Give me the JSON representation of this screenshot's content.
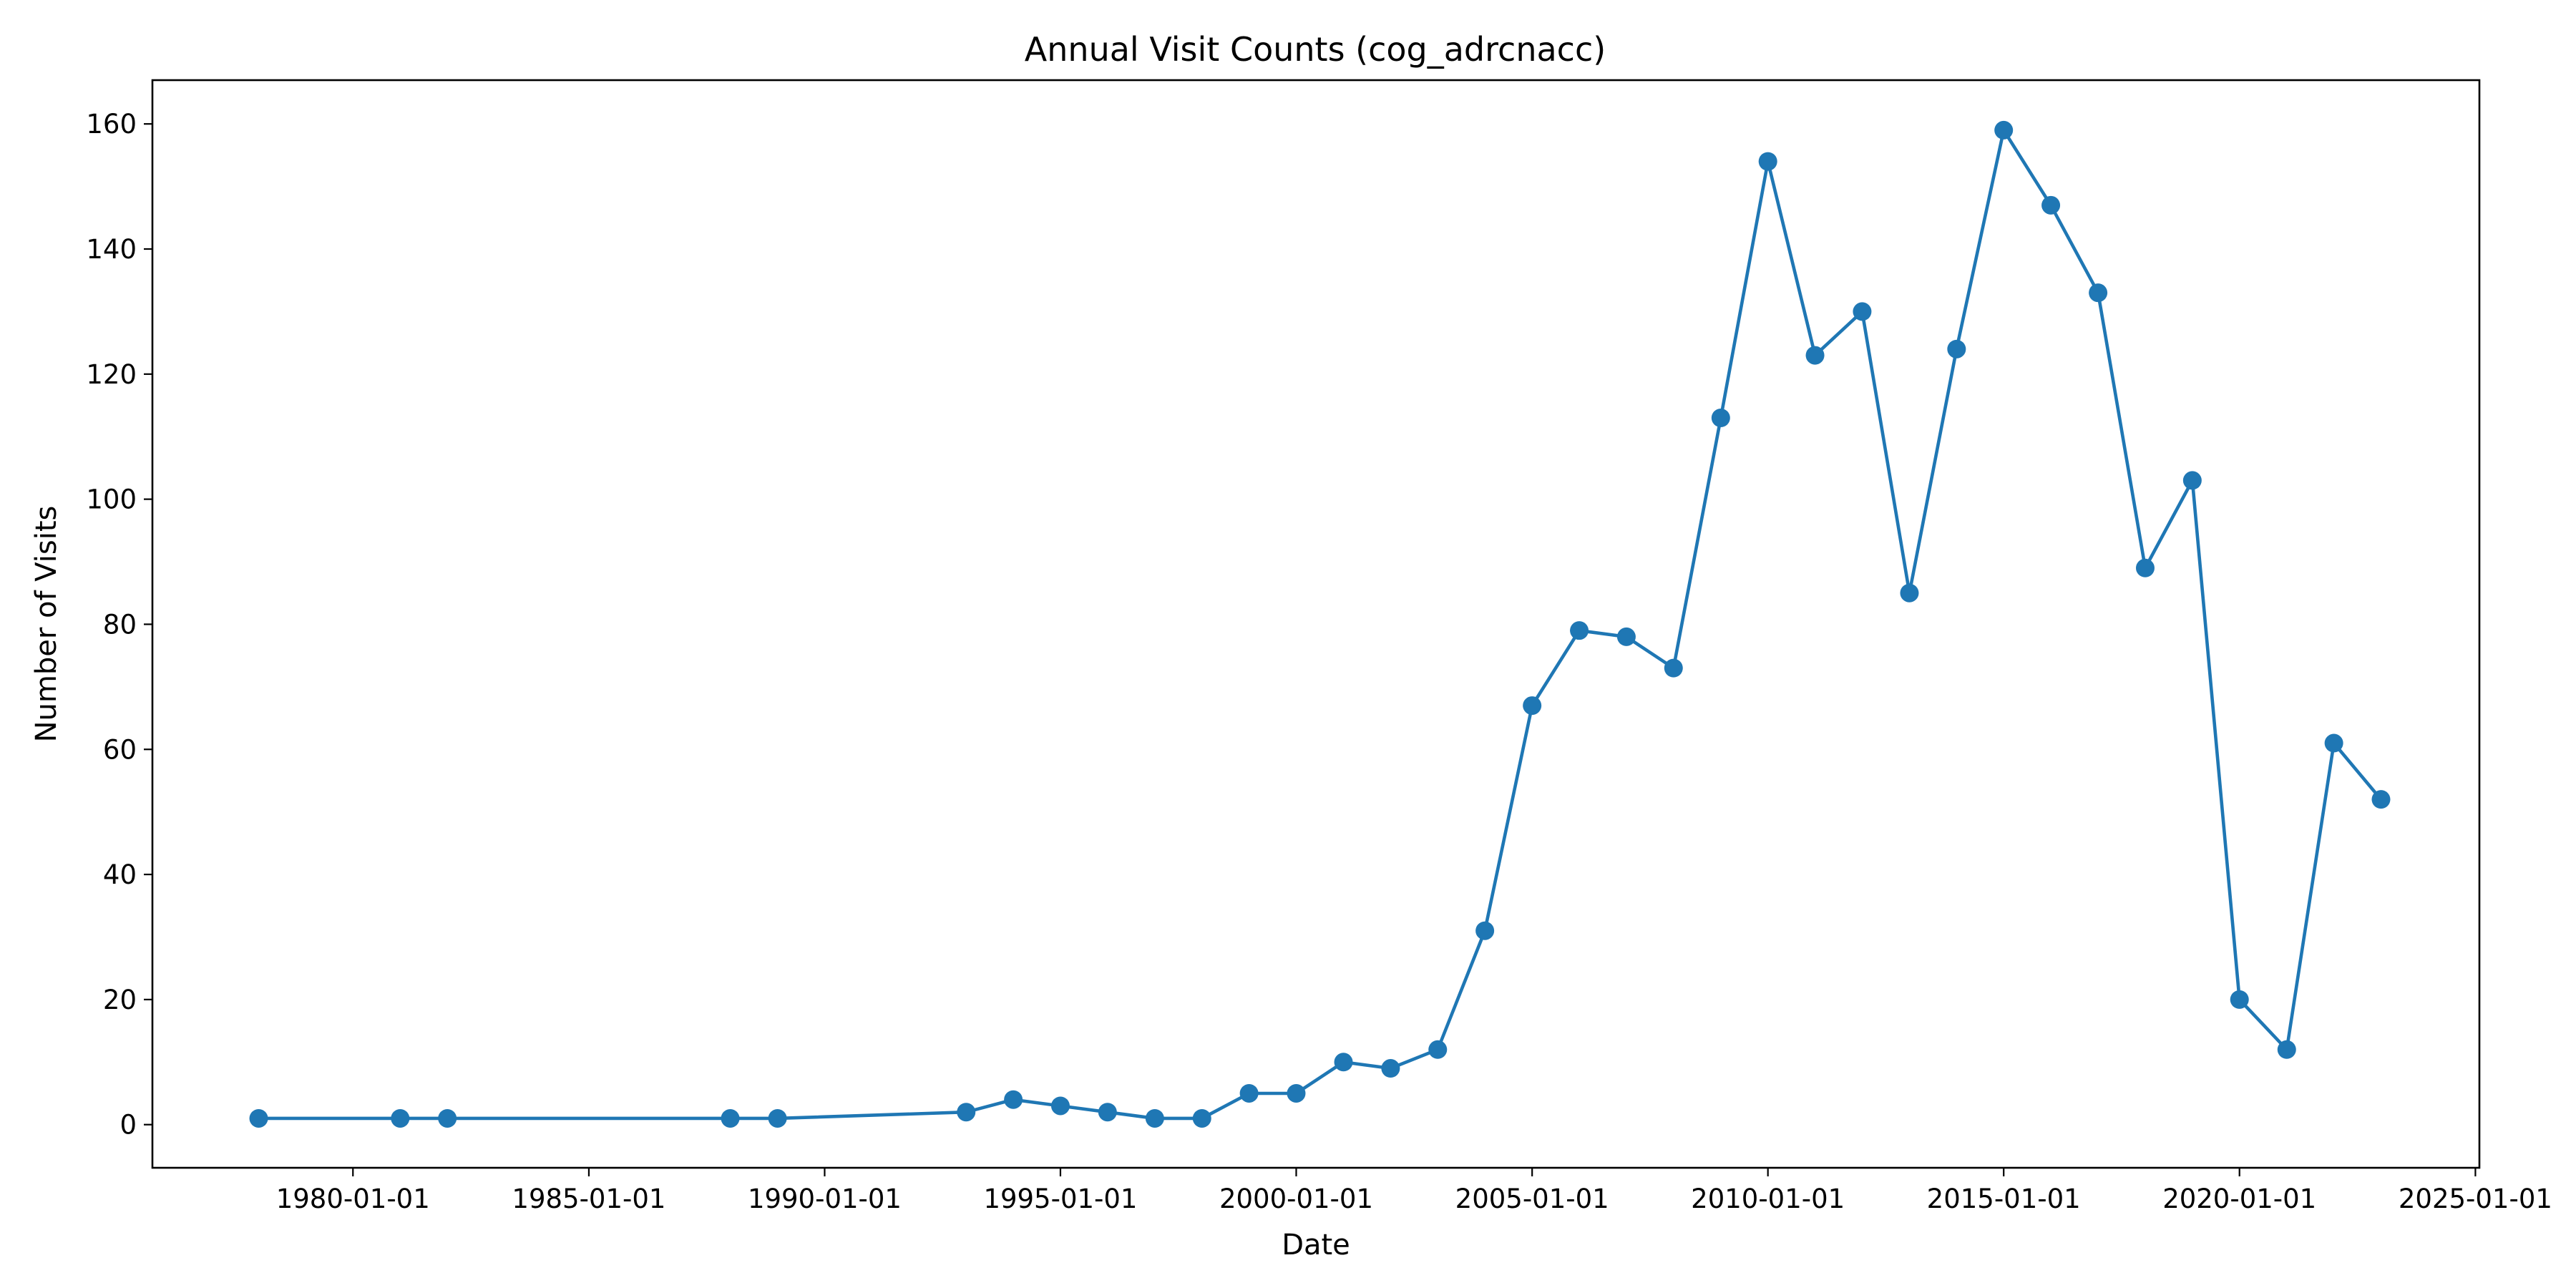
{
  "chart_data": {
    "type": "line",
    "title": "Annual Visit Counts (cog_adrcnacc)",
    "xlabel": "Date",
    "ylabel": "Number of Visits",
    "x_axis": {
      "scale": "date",
      "range": [
        "1975-10-01",
        "2025-02-01"
      ],
      "ticks": [
        "1980-01-01",
        "1985-01-01",
        "1990-01-01",
        "1995-01-01",
        "2000-01-01",
        "2005-01-01",
        "2010-01-01",
        "2015-01-01",
        "2020-01-01",
        "2025-01-01"
      ]
    },
    "y_axis": {
      "range": [
        -6.9,
        167
      ],
      "ticks": [
        0,
        20,
        40,
        60,
        80,
        100,
        120,
        140,
        160
      ]
    },
    "grid": false,
    "legend": "none",
    "colors": {
      "series": "#1f77b4"
    },
    "series": [
      {
        "x": [
          "1978-01-01",
          "1981-01-01",
          "1982-01-01",
          "1988-01-01",
          "1989-01-01",
          "1993-01-01",
          "1994-01-01",
          "1995-01-01",
          "1996-01-01",
          "1997-01-01",
          "1998-01-01",
          "1999-01-01",
          "2000-01-01",
          "2001-01-01",
          "2002-01-01",
          "2003-01-01",
          "2004-01-01",
          "2005-01-01",
          "2006-01-01",
          "2007-01-01",
          "2008-01-01",
          "2009-01-01",
          "2010-01-01",
          "2011-01-01",
          "2012-01-01",
          "2013-01-01",
          "2014-01-01",
          "2015-01-01",
          "2016-01-01",
          "2017-01-01",
          "2018-01-01",
          "2019-01-01",
          "2020-01-01",
          "2021-01-01",
          "2022-01-01",
          "2023-01-01"
        ],
        "values": [
          1,
          1,
          1,
          1,
          1,
          2,
          4,
          3,
          2,
          1,
          1,
          5,
          5,
          10,
          9,
          12,
          31,
          67,
          79,
          78,
          73,
          113,
          154,
          123,
          130,
          85,
          124,
          159,
          147,
          133,
          89,
          103,
          20,
          12,
          61,
          52
        ]
      }
    ]
  }
}
